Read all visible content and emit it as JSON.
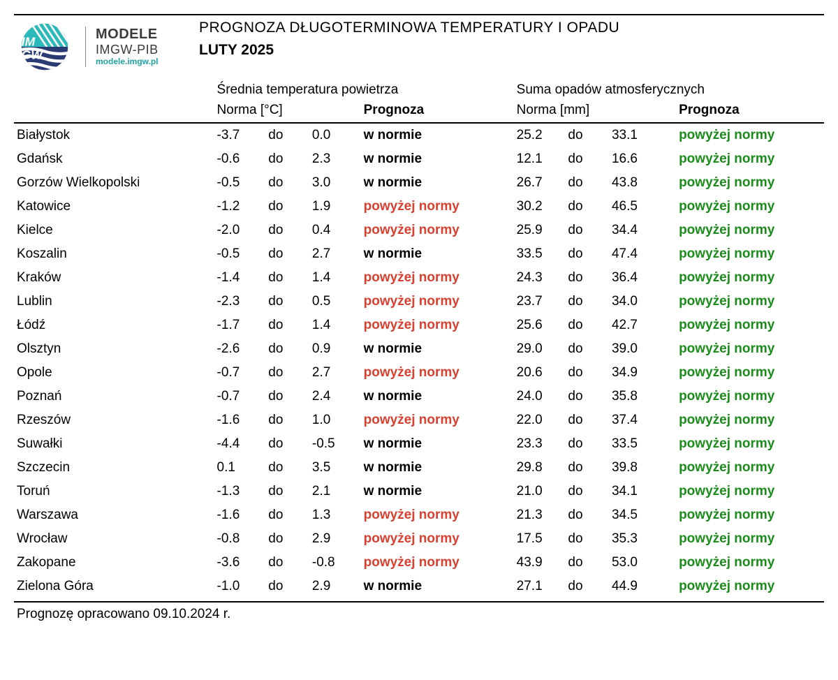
{
  "brand": {
    "line1": "MODELE",
    "line2": "IMGW-PIB",
    "line3": "modele.imgw.pl"
  },
  "title": {
    "line1": "PROGNOZA DŁUGOTERMINOWA TEMPERATURY I OPADU",
    "line2": "LUTY 2025"
  },
  "headers": {
    "temp_group": "Średnia temperatura powietrza",
    "precip_group": "Suma opadów atmosferycznych",
    "norm_c": "Norma [°C]",
    "norm_mm": "Norma [mm]",
    "forecast": "Prognoza",
    "to": "do"
  },
  "labels": {
    "in_norm": "w normie",
    "above_norm": "powyżej normy"
  },
  "footer": "Prognozę opracowano 09.10.2024 r.",
  "colors": {
    "above_red": "#d94030",
    "above_green": "#1a8c1a",
    "text": "#000000",
    "background": "#ffffff",
    "rule": "#000000",
    "brand_teal": "#1fa3a3"
  },
  "rows": [
    {
      "city": "Białystok",
      "t_lo": "-3.7",
      "t_hi": "0.0",
      "t_fc": "w normie",
      "t_cls": "",
      "p_lo": "25.2",
      "p_hi": "33.1",
      "p_fc": "powyżej normy",
      "p_cls": "above-green"
    },
    {
      "city": "Gdańsk",
      "t_lo": "-0.6",
      "t_hi": "2.3",
      "t_fc": "w normie",
      "t_cls": "",
      "p_lo": "12.1",
      "p_hi": "16.6",
      "p_fc": "powyżej normy",
      "p_cls": "above-green"
    },
    {
      "city": "Gorzów Wielkopolski",
      "t_lo": "-0.5",
      "t_hi": "3.0",
      "t_fc": "w normie",
      "t_cls": "",
      "p_lo": "26.7",
      "p_hi": "43.8",
      "p_fc": "powyżej normy",
      "p_cls": "above-green"
    },
    {
      "city": "Katowice",
      "t_lo": "-1.2",
      "t_hi": "1.9",
      "t_fc": "powyżej normy",
      "t_cls": "above-red",
      "p_lo": "30.2",
      "p_hi": "46.5",
      "p_fc": "powyżej normy",
      "p_cls": "above-green"
    },
    {
      "city": "Kielce",
      "t_lo": "-2.0",
      "t_hi": "0.4",
      "t_fc": "powyżej normy",
      "t_cls": "above-red",
      "p_lo": "25.9",
      "p_hi": "34.4",
      "p_fc": "powyżej normy",
      "p_cls": "above-green"
    },
    {
      "city": "Koszalin",
      "t_lo": "-0.5",
      "t_hi": "2.7",
      "t_fc": "w normie",
      "t_cls": "",
      "p_lo": "33.5",
      "p_hi": "47.4",
      "p_fc": "powyżej normy",
      "p_cls": "above-green"
    },
    {
      "city": "Kraków",
      "t_lo": "-1.4",
      "t_hi": "1.4",
      "t_fc": "powyżej normy",
      "t_cls": "above-red",
      "p_lo": "24.3",
      "p_hi": "36.4",
      "p_fc": "powyżej normy",
      "p_cls": "above-green"
    },
    {
      "city": "Lublin",
      "t_lo": "-2.3",
      "t_hi": "0.5",
      "t_fc": "powyżej normy",
      "t_cls": "above-red",
      "p_lo": "23.7",
      "p_hi": "34.0",
      "p_fc": "powyżej normy",
      "p_cls": "above-green"
    },
    {
      "city": "Łódź",
      "t_lo": "-1.7",
      "t_hi": "1.4",
      "t_fc": "powyżej normy",
      "t_cls": "above-red",
      "p_lo": "25.6",
      "p_hi": "42.7",
      "p_fc": "powyżej normy",
      "p_cls": "above-green"
    },
    {
      "city": "Olsztyn",
      "t_lo": "-2.6",
      "t_hi": "0.9",
      "t_fc": "w normie",
      "t_cls": "",
      "p_lo": "29.0",
      "p_hi": "39.0",
      "p_fc": "powyżej normy",
      "p_cls": "above-green"
    },
    {
      "city": "Opole",
      "t_lo": "-0.7",
      "t_hi": "2.7",
      "t_fc": "powyżej normy",
      "t_cls": "above-red",
      "p_lo": "20.6",
      "p_hi": "34.9",
      "p_fc": "powyżej normy",
      "p_cls": "above-green"
    },
    {
      "city": "Poznań",
      "t_lo": "-0.7",
      "t_hi": "2.4",
      "t_fc": "w normie",
      "t_cls": "",
      "p_lo": "24.0",
      "p_hi": "35.8",
      "p_fc": "powyżej normy",
      "p_cls": "above-green"
    },
    {
      "city": "Rzeszów",
      "t_lo": "-1.6",
      "t_hi": "1.0",
      "t_fc": "powyżej normy",
      "t_cls": "above-red",
      "p_lo": "22.0",
      "p_hi": "37.4",
      "p_fc": "powyżej normy",
      "p_cls": "above-green"
    },
    {
      "city": "Suwałki",
      "t_lo": "-4.4",
      "t_hi": "-0.5",
      "t_fc": "w normie",
      "t_cls": "",
      "p_lo": "23.3",
      "p_hi": "33.5",
      "p_fc": "powyżej normy",
      "p_cls": "above-green"
    },
    {
      "city": "Szczecin",
      "t_lo": "0.1",
      "t_hi": "3.5",
      "t_fc": "w normie",
      "t_cls": "",
      "p_lo": "29.8",
      "p_hi": "39.8",
      "p_fc": "powyżej normy",
      "p_cls": "above-green"
    },
    {
      "city": "Toruń",
      "t_lo": "-1.3",
      "t_hi": "2.1",
      "t_fc": "w normie",
      "t_cls": "",
      "p_lo": "21.0",
      "p_hi": "34.1",
      "p_fc": "powyżej normy",
      "p_cls": "above-green"
    },
    {
      "city": "Warszawa",
      "t_lo": "-1.6",
      "t_hi": "1.3",
      "t_fc": "powyżej normy",
      "t_cls": "above-red",
      "p_lo": "21.3",
      "p_hi": "34.5",
      "p_fc": "powyżej normy",
      "p_cls": "above-green"
    },
    {
      "city": "Wrocław",
      "t_lo": "-0.8",
      "t_hi": "2.9",
      "t_fc": "powyżej normy",
      "t_cls": "above-red",
      "p_lo": "17.5",
      "p_hi": "35.3",
      "p_fc": "powyżej normy",
      "p_cls": "above-green"
    },
    {
      "city": "Zakopane",
      "t_lo": "-3.6",
      "t_hi": "-0.8",
      "t_fc": "powyżej normy",
      "t_cls": "above-red",
      "p_lo": "43.9",
      "p_hi": "53.0",
      "p_fc": "powyżej normy",
      "p_cls": "above-green"
    },
    {
      "city": "Zielona Góra",
      "t_lo": "-1.0",
      "t_hi": "2.9",
      "t_fc": "w normie",
      "t_cls": "",
      "p_lo": "27.1",
      "p_hi": "44.9",
      "p_fc": "powyżej normy",
      "p_cls": "above-green"
    }
  ]
}
